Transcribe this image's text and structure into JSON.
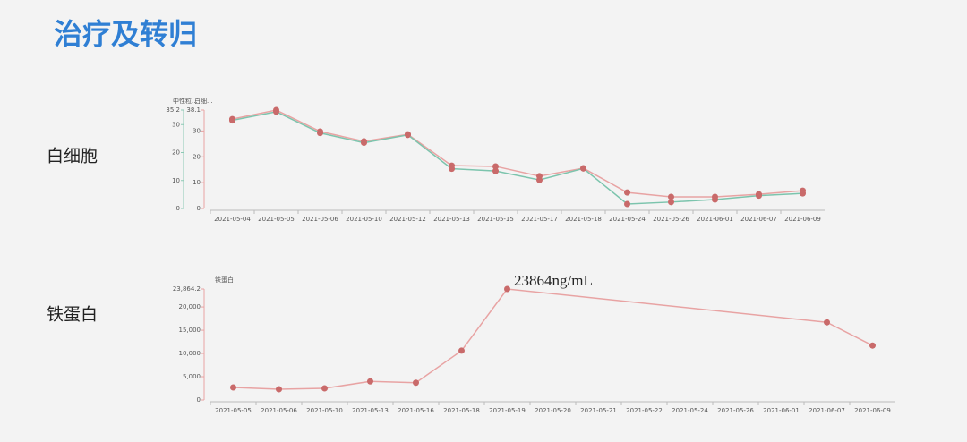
{
  "title": "治疗及转归",
  "row_labels": [
    "白细胞",
    "铁蛋白"
  ],
  "chart_data": [
    {
      "type": "line",
      "y_label": "中性粒...",
      "y2_label": "白细...",
      "categories": [
        "2021-05-04",
        "2021-05-05",
        "2021-05-06",
        "2021-05-10",
        "2021-05-12",
        "2021-05-13",
        "2021-05-15",
        "2021-05-17",
        "2021-05-18",
        "2021-05-24",
        "2021-05-26",
        "2021-06-01",
        "2021-06-07",
        "2021-06-09"
      ],
      "ylim": [
        0,
        35.2
      ],
      "yticks": [
        0,
        10,
        20,
        30,
        35.2
      ],
      "y2lim": [
        0,
        38.1
      ],
      "y2ticks": [
        0,
        10,
        20,
        30,
        38.1
      ],
      "series": [
        {
          "name": "白细胞",
          "color": "#e8a3a3",
          "axis": "y2",
          "values": [
            34.6,
            38.1,
            29.8,
            26,
            28.7,
            16.6,
            16.3,
            12.5,
            15.6,
            6.2,
            4.5,
            4.5,
            5.5,
            6.9
          ]
        },
        {
          "name": "中性粒细胞",
          "color": "#7cc4ad",
          "values": [
            31.5,
            34.6,
            27,
            23.5,
            26.3,
            14.2,
            13.4,
            10.2,
            14.3,
            1.6,
            2.3,
            3.2,
            4.6,
            5.4
          ]
        }
      ]
    },
    {
      "type": "line",
      "y_label": "铁蛋白",
      "annotation": "23864ng/mL",
      "connect_nulls": true,
      "categories": [
        "2021-05-05",
        "2021-05-06",
        "2021-05-10",
        "2021-05-13",
        "2021-05-16",
        "2021-05-18",
        "2021-05-19",
        "2021-05-20",
        "2021-05-21",
        "2021-05-22",
        "2021-05-24",
        "2021-05-26",
        "2021-06-01",
        "2021-06-07",
        "2021-06-09"
      ],
      "ylim": [
        0,
        23864.2
      ],
      "yticks": [
        0,
        {
          "value": 5000,
          "label": "5,000"
        },
        {
          "value": 10000,
          "label": "10,000"
        },
        {
          "value": 15000,
          "label": "15,000"
        },
        {
          "value": 20000,
          "label": "20,000"
        },
        {
          "value": 23864.2,
          "label": "23,864.2"
        }
      ],
      "series": [
        {
          "name": "铁蛋白",
          "color": "#e8a3a3",
          "values": [
            2700,
            2300,
            2500,
            4000,
            3700,
            10600,
            23864,
            null,
            null,
            null,
            null,
            null,
            null,
            16700,
            11700
          ]
        }
      ]
    }
  ]
}
